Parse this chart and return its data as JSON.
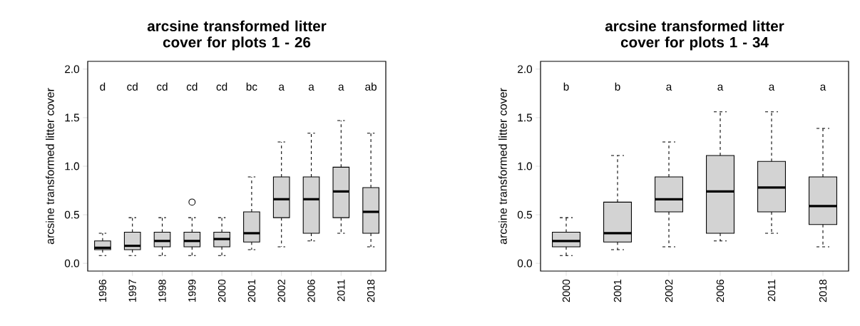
{
  "chart_data": [
    {
      "type": "box",
      "title": "arcsine transformed litter cover for plots 1 - 26",
      "ylabel": "arcsine transformed litter cover",
      "color": "#d3d3d3",
      "categories": [
        "1996",
        "1997",
        "1998",
        "1999",
        "2000",
        "2001",
        "2002",
        "2006",
        "2011",
        "2018"
      ],
      "boxes": [
        {
          "low": 0.08,
          "q1": 0.14,
          "median": 0.16,
          "q3": 0.23,
          "high": 0.31
        },
        {
          "low": 0.08,
          "q1": 0.14,
          "median": 0.18,
          "q3": 0.32,
          "high": 0.47
        },
        {
          "low": 0.08,
          "q1": 0.17,
          "median": 0.23,
          "q3": 0.32,
          "high": 0.47
        },
        {
          "low": 0.08,
          "q1": 0.17,
          "median": 0.23,
          "q3": 0.32,
          "high": 0.47,
          "outliers": [
            0.63
          ]
        },
        {
          "low": 0.08,
          "q1": 0.17,
          "median": 0.25,
          "q3": 0.32,
          "high": 0.47
        },
        {
          "low": 0.14,
          "q1": 0.22,
          "median": 0.31,
          "q3": 0.53,
          "high": 0.89
        },
        {
          "low": 0.17,
          "q1": 0.47,
          "median": 0.66,
          "q3": 0.89,
          "high": 1.25
        },
        {
          "low": 0.23,
          "q1": 0.31,
          "median": 0.66,
          "q3": 0.89,
          "high": 1.34
        },
        {
          "low": 0.31,
          "q1": 0.47,
          "median": 0.74,
          "q3": 0.99,
          "high": 1.47
        },
        {
          "low": 0.17,
          "q1": 0.31,
          "median": 0.53,
          "q3": 0.78,
          "high": 1.34
        }
      ],
      "annotations": [
        "d",
        "cd",
        "cd",
        "cd",
        "cd",
        "bc",
        "a",
        "a",
        "a",
        "ab"
      ],
      "ylim": [
        -0.08,
        2.08
      ],
      "yticks": [
        {
          "value": 0,
          "label": "0.0"
        },
        {
          "value": 0.5,
          "label": "0.5"
        },
        {
          "value": 1,
          "label": "1.0"
        },
        {
          "value": 1.5,
          "label": "1.5"
        },
        {
          "value": 2,
          "label": "2.0"
        }
      ]
    },
    {
      "type": "box",
      "title": "arcsine transformed litter cover for plots 1 - 34",
      "ylabel": "arcsine transformed litter cover",
      "color": "#d3d3d3",
      "categories": [
        "2000",
        "2001",
        "2002",
        "2006",
        "2011",
        "2018"
      ],
      "boxes": [
        {
          "low": 0.08,
          "q1": 0.17,
          "median": 0.23,
          "q3": 0.32,
          "high": 0.47
        },
        {
          "low": 0.14,
          "q1": 0.22,
          "median": 0.31,
          "q3": 0.63,
          "high": 1.11
        },
        {
          "low": 0.17,
          "q1": 0.53,
          "median": 0.66,
          "q3": 0.89,
          "high": 1.25
        },
        {
          "low": 0.23,
          "q1": 0.31,
          "median": 0.74,
          "q3": 1.11,
          "high": 1.56
        },
        {
          "low": 0.31,
          "q1": 0.53,
          "median": 0.78,
          "q3": 1.05,
          "high": 1.56
        },
        {
          "low": 0.17,
          "q1": 0.4,
          "median": 0.59,
          "q3": 0.89,
          "high": 1.39
        }
      ],
      "annotations": [
        "b",
        "b",
        "a",
        "a",
        "a",
        "a"
      ],
      "ylim": [
        -0.08,
        2.08
      ],
      "yticks": [
        {
          "value": 0,
          "label": "0.0"
        },
        {
          "value": 0.5,
          "label": "0.5"
        },
        {
          "value": 1,
          "label": "1.0"
        },
        {
          "value": 1.5,
          "label": "1.5"
        },
        {
          "value": 2,
          "label": "2.0"
        }
      ]
    }
  ]
}
